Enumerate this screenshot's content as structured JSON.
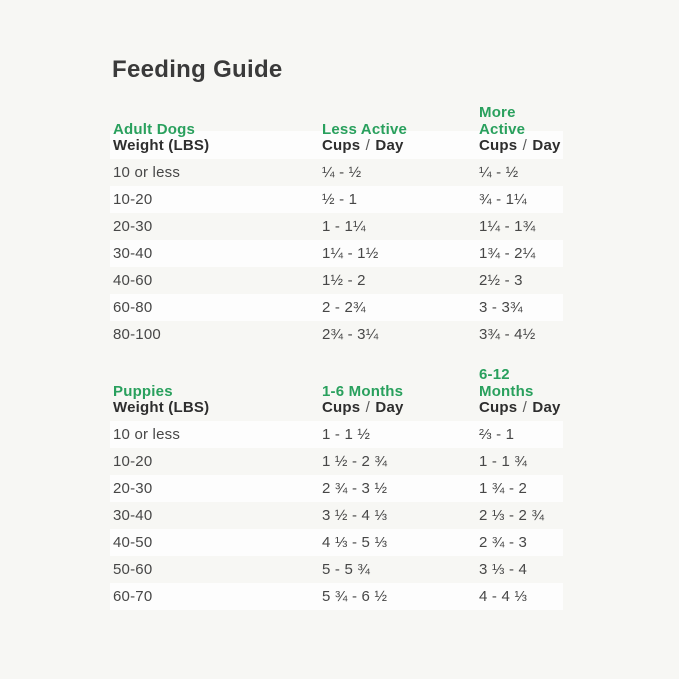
{
  "page": {
    "title": "Feeding Guide",
    "background_color": "#f7f7f4",
    "accent_green": "#29a05d",
    "stripe_color": "#fdfdfd"
  },
  "adult": {
    "section_label": "Adult Dogs",
    "col2_header": "Less Active",
    "col3_header": "More Active",
    "subheader": {
      "col1": "Weight (LBS)",
      "col2": "Cups / Day",
      "col3": "Cups / Day"
    },
    "rows": [
      {
        "weight": "10 or less",
        "less_active": "¼ - ½",
        "more_active": "¼ - ½"
      },
      {
        "weight": "10-20",
        "less_active": "½ - 1",
        "more_active": "¾ - 1¼"
      },
      {
        "weight": "20-30",
        "less_active": "1 - 1¼",
        "more_active": "1¼ - 1¾"
      },
      {
        "weight": "30-40",
        "less_active": "1¼ - 1½",
        "more_active": "1¾ - 2¼"
      },
      {
        "weight": "40-60",
        "less_active": "1½ - 2",
        "more_active": "2½ - 3"
      },
      {
        "weight": "60-80",
        "less_active": "2 - 2¾",
        "more_active": "3 - 3¾"
      },
      {
        "weight": "80-100",
        "less_active": "2¾ - 3¼",
        "more_active": "3¾ - 4½"
      }
    ]
  },
  "puppies": {
    "section_label": "Puppies",
    "col2_header": "1-6 Months",
    "col3_header": "6-12 Months",
    "subheader": {
      "col1": "Weight (LBS)",
      "col2": "Cups / Day",
      "col3": "Cups / Day"
    },
    "rows": [
      {
        "weight": "10 or less",
        "months_1_6": "1 - 1 ½",
        "months_6_12": "⅔ - 1"
      },
      {
        "weight": "10-20",
        "months_1_6": "1 ½ - 2 ¾",
        "months_6_12": "1 - 1 ¾"
      },
      {
        "weight": "20-30",
        "months_1_6": "2 ¾ - 3 ½",
        "months_6_12": "1 ¾ - 2"
      },
      {
        "weight": "30-40",
        "months_1_6": "3 ½ - 4 ⅓",
        "months_6_12": "2 ⅓ - 2 ¾"
      },
      {
        "weight": "40-50",
        "months_1_6": "4 ⅓ - 5 ⅓",
        "months_6_12": "2 ¾ - 3"
      },
      {
        "weight": "50-60",
        "months_1_6": "5 - 5 ¾",
        "months_6_12": "3 ⅓ - 4"
      },
      {
        "weight": "60-70",
        "months_1_6": "5 ¾ - 6 ½",
        "months_6_12": "4 - 4 ⅓"
      }
    ]
  }
}
